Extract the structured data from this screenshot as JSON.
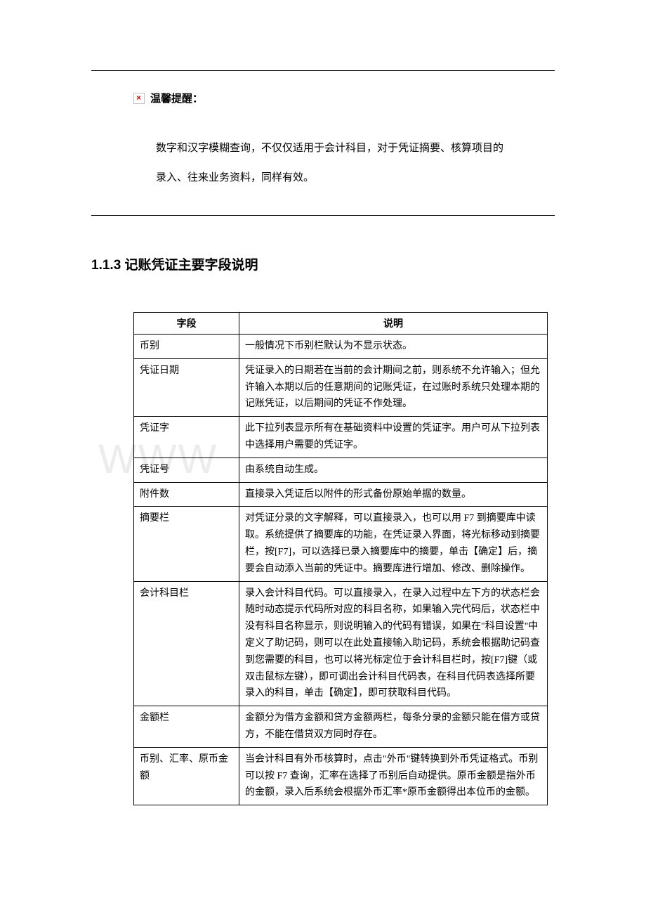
{
  "tip": {
    "title": "温馨提醒：",
    "line1": "数字和汉字模糊查询，不仅仅适用于会计科目，对于凭证摘要、核算项目的",
    "line2": "录入、往来业务资料，同样有效。"
  },
  "section": {
    "number": "1.1.3",
    "title": "记账凭证主要字段说明"
  },
  "table": {
    "header_field": "字段",
    "header_desc": "说明",
    "rows": [
      {
        "field": "币别",
        "desc": "一般情况下币别栏默认为不显示状态。"
      },
      {
        "field": "凭证日期",
        "desc": "凭证录入的日期若在当前的会计期间之前，则系统不允许输入；但允许输入本期以后的任意期间的记账凭证，在过账时系统只处理本期的记账凭证，以后期间的凭证不作处理。"
      },
      {
        "field": "凭证字",
        "desc": "此下拉列表显示所有在基础资料中设置的凭证字。用户可从下拉列表中选择用户需要的凭证字。"
      },
      {
        "field": "凭证号",
        "desc": "由系统自动生成。"
      },
      {
        "field": "附件数",
        "desc": "直接录入凭证后以附件的形式备份原始单据的数量。"
      },
      {
        "field": "摘要栏",
        "desc": "对凭证分录的文字解释，可以直接录入，也可以用 F7 到摘要库中读取。系统提供了摘要库的功能，在凭证录入界面，将光标移动到摘要栏，按[F7]，可以选择已录入摘要库中的摘要，单击【确定】后，摘要会自动添入当前的凭证中。摘要库进行增加、修改、删除操作。"
      },
      {
        "field": "会计科目栏",
        "desc": "录入会计科目代码。可以直接录入，在录入过程中左下方的状态栏会随时动态提示代码所对应的科目名称，如果输入完代码后，状态栏中没有科目名称显示，则说明输入的代码有错误，如果在\"科目设置\"中定义了助记码，则可以在此处直接输入助记码，系统会根据助记码查到您需要的科目，也可以将光标定位于会计科目栏时，按[F7]键（或双击鼠标左键），即可调出会计科目代码表，在科目代码表选择所要录入的科目，单击【确定】，即可获取科目代码。"
      },
      {
        "field": "金额栏",
        "desc": "金额分为借方金额和贷方金额两栏，每条分录的金额只能在借方或贷方，不能在借贷双方同时存在。"
      },
      {
        "field": "币别、汇率、原币金额",
        "desc": "当会计科目有外币核算时，点击\"外币\"键转换到外币凭证格式。币别可以按 F7 查询，汇率在选择了币别后自动提供。原币金额是指外币的金额，录入后系统会根据外币汇率*原币金额得出本位币的金额。"
      }
    ]
  },
  "watermark_text": "WWW",
  "colors": {
    "text": "#000000",
    "background": "#ffffff",
    "border": "#000000",
    "watermark": "rgba(200,200,200,0.35)",
    "icon_border": "#c0c0c0",
    "icon_x": "#cc0000"
  },
  "typography": {
    "body_font": "SimSun",
    "heading_font": "SimHei",
    "body_size_pt": 11,
    "heading_size_pt": 14,
    "table_size_pt": 10.5
  }
}
